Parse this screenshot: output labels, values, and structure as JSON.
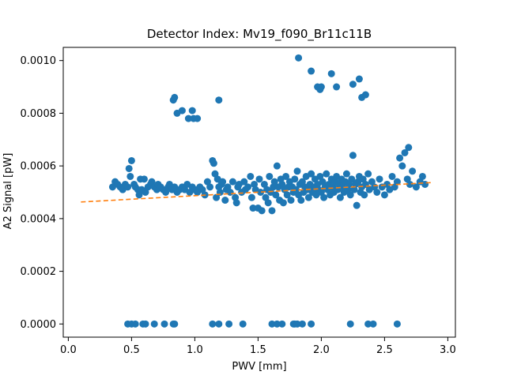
{
  "chart_data": {
    "type": "scatter",
    "title": "Detector Index: Mv19_f090_Br11c11B",
    "xlabel": "PWV [mm]",
    "ylabel": "A2 Signal [pW]",
    "xlim": [
      -0.04,
      3.06
    ],
    "ylim": [
      -5e-05,
      0.00105
    ],
    "x_ticks": [
      0.0,
      0.5,
      1.0,
      1.5,
      2.0,
      2.5,
      3.0
    ],
    "x_tick_labels": [
      "0.0",
      "0.5",
      "1.0",
      "1.5",
      "2.0",
      "2.5",
      "3.0"
    ],
    "y_ticks": [
      0.0,
      0.0002,
      0.0004,
      0.0006,
      0.0008,
      0.001
    ],
    "y_tick_labels": [
      "0.0000",
      "0.0002",
      "0.0004",
      "0.0006",
      "0.0008",
      "0.0010"
    ],
    "grid": false,
    "series": [
      {
        "kind": "points",
        "color": "#1f77b4",
        "points": [
          [
            0.35,
            0.00052
          ],
          [
            0.37,
            0.00054
          ],
          [
            0.39,
            0.00053
          ],
          [
            0.41,
            0.00052
          ],
          [
            0.43,
            0.00051
          ],
          [
            0.45,
            0.00053
          ],
          [
            0.47,
            0.00052
          ],
          [
            0.48,
            0.00059
          ],
          [
            0.49,
            0.00056
          ],
          [
            0.5,
            0.00062
          ],
          [
            0.52,
            0.00053
          ],
          [
            0.53,
            0.00052
          ],
          [
            0.55,
            0.00051
          ],
          [
            0.56,
            0.00049
          ],
          [
            0.57,
            0.00055
          ],
          [
            0.58,
            0.00051
          ],
          [
            0.6,
            0.00055
          ],
          [
            0.61,
            0.0005
          ],
          [
            0.63,
            0.00052
          ],
          [
            0.65,
            0.00053
          ],
          [
            0.66,
            0.00054
          ],
          [
            0.68,
            0.00052
          ],
          [
            0.7,
            0.00051
          ],
          [
            0.71,
            0.00053
          ],
          [
            0.73,
            0.00052
          ],
          [
            0.75,
            0.00051
          ],
          [
            0.77,
            0.0005
          ],
          [
            0.79,
            0.00052
          ],
          [
            0.8,
            0.00053
          ],
          [
            0.82,
            0.00051
          ],
          [
            0.84,
            0.00052
          ],
          [
            0.86,
            0.0005
          ],
          [
            0.88,
            0.00051
          ],
          [
            0.9,
            0.00052
          ],
          [
            0.92,
            0.00051
          ],
          [
            0.94,
            0.00053
          ],
          [
            0.96,
            0.0005
          ],
          [
            0.98,
            0.00052
          ],
          [
            1.0,
            0.00051
          ],
          [
            1.02,
            0.0005
          ],
          [
            1.04,
            0.00052
          ],
          [
            1.06,
            0.00051
          ],
          [
            1.08,
            0.00049
          ],
          [
            1.1,
            0.00054
          ],
          [
            1.12,
            0.00052
          ],
          [
            1.14,
            0.00062
          ],
          [
            1.15,
            0.00061
          ],
          [
            1.16,
            0.00057
          ],
          [
            1.17,
            0.00048
          ],
          [
            1.18,
            0.00055
          ],
          [
            1.19,
            0.00052
          ],
          [
            1.2,
            0.0005
          ],
          [
            1.21,
            0.00053
          ],
          [
            1.22,
            0.00054
          ],
          [
            1.24,
            0.00047
          ],
          [
            1.25,
            0.00051
          ],
          [
            1.26,
            0.00052
          ],
          [
            1.28,
            0.0005
          ],
          [
            1.3,
            0.00054
          ],
          [
            1.32,
            0.00048
          ],
          [
            1.33,
            0.00046
          ],
          [
            1.34,
            0.00052
          ],
          [
            1.35,
            0.00053
          ],
          [
            1.37,
            0.0005
          ],
          [
            1.39,
            0.00054
          ],
          [
            1.4,
            0.00051
          ],
          [
            1.42,
            0.00052
          ],
          [
            1.44,
            0.00056
          ],
          [
            1.45,
            0.00048
          ],
          [
            1.46,
            0.00044
          ],
          [
            1.47,
            0.00053
          ],
          [
            1.48,
            0.00051
          ],
          [
            1.5,
            0.00044
          ],
          [
            1.51,
            0.00055
          ],
          [
            1.52,
            0.0005
          ],
          [
            1.53,
            0.00043
          ],
          [
            1.55,
            0.00053
          ],
          [
            1.56,
            0.00048
          ],
          [
            1.57,
            0.00051
          ],
          [
            1.58,
            0.00046
          ],
          [
            1.59,
            0.00056
          ],
          [
            1.6,
            0.0005
          ],
          [
            1.61,
            0.00043
          ],
          [
            1.62,
            0.00052
          ],
          [
            1.63,
            0.00054
          ],
          [
            1.64,
            0.00049
          ],
          [
            1.65,
            0.0006
          ],
          [
            1.66,
            0.00052
          ],
          [
            1.67,
            0.00047
          ],
          [
            1.68,
            0.00055
          ],
          [
            1.69,
            0.00053
          ],
          [
            1.7,
            0.00046
          ],
          [
            1.71,
            0.00051
          ],
          [
            1.72,
            0.00056
          ],
          [
            1.73,
            0.00049
          ],
          [
            1.74,
            0.00052
          ],
          [
            1.75,
            0.00054
          ],
          [
            1.76,
            0.00047
          ],
          [
            1.77,
            0.00052
          ],
          [
            1.78,
            0.0005
          ],
          [
            1.79,
            0.00055
          ],
          [
            1.8,
            0.00051
          ],
          [
            1.81,
            0.00058
          ],
          [
            1.82,
            0.00049
          ],
          [
            1.83,
            0.00053
          ],
          [
            1.84,
            0.00047
          ],
          [
            1.85,
            0.00054
          ],
          [
            1.86,
            0.0005
          ],
          [
            1.87,
            0.00052
          ],
          [
            1.88,
            0.00056
          ],
          [
            1.89,
            0.00051
          ],
          [
            1.9,
            0.00048
          ],
          [
            1.91,
            0.00053
          ],
          [
            1.92,
            0.00057
          ],
          [
            1.93,
            0.0005
          ],
          [
            1.94,
            0.00052
          ],
          [
            1.95,
            0.00055
          ],
          [
            1.96,
            0.00049
          ],
          [
            1.97,
            0.00053
          ],
          [
            1.98,
            0.00051
          ],
          [
            1.99,
            0.00056
          ],
          [
            2.0,
            0.0005
          ],
          [
            2.01,
            0.00054
          ],
          [
            2.02,
            0.00048
          ],
          [
            2.03,
            0.00052
          ],
          [
            2.04,
            0.00057
          ],
          [
            2.05,
            0.00051
          ],
          [
            2.06,
            0.00053
          ],
          [
            2.07,
            0.00049
          ],
          [
            2.08,
            0.00055
          ],
          [
            2.09,
            0.00052
          ],
          [
            2.1,
            0.0005
          ],
          [
            2.11,
            0.00054
          ],
          [
            2.12,
            0.00056
          ],
          [
            2.13,
            0.00051
          ],
          [
            2.14,
            0.00053
          ],
          [
            2.15,
            0.00048
          ],
          [
            2.16,
            0.00055
          ],
          [
            2.17,
            0.00052
          ],
          [
            2.18,
            0.0005
          ],
          [
            2.19,
            0.00054
          ],
          [
            2.2,
            0.00057
          ],
          [
            2.21,
            0.00051
          ],
          [
            2.22,
            0.00053
          ],
          [
            2.23,
            0.00049
          ],
          [
            2.24,
            0.00055
          ],
          [
            2.25,
            0.00064
          ],
          [
            2.26,
            0.00051
          ],
          [
            2.27,
            0.00053
          ],
          [
            2.28,
            0.00045
          ],
          [
            2.29,
            0.00054
          ],
          [
            2.3,
            0.00056
          ],
          [
            2.31,
            0.0005
          ],
          [
            2.32,
            0.00052
          ],
          [
            2.33,
            0.00055
          ],
          [
            2.34,
            0.00049
          ],
          [
            2.35,
            0.00053
          ],
          [
            2.37,
            0.00057
          ],
          [
            2.38,
            0.00051
          ],
          [
            2.4,
            0.00054
          ],
          [
            2.42,
            0.00052
          ],
          [
            2.44,
            0.0005
          ],
          [
            2.46,
            0.00055
          ],
          [
            2.48,
            0.00052
          ],
          [
            2.5,
            0.00049
          ],
          [
            2.52,
            0.00053
          ],
          [
            2.54,
            0.00051
          ],
          [
            2.56,
            0.00056
          ],
          [
            2.58,
            0.00052
          ],
          [
            2.6,
            0.00054
          ],
          [
            2.62,
            0.00063
          ],
          [
            2.64,
            0.0006
          ],
          [
            2.66,
            0.00065
          ],
          [
            2.68,
            0.00055
          ],
          [
            2.69,
            0.00067
          ],
          [
            2.7,
            0.00053
          ],
          [
            2.72,
            0.00058
          ],
          [
            2.75,
            0.00052
          ],
          [
            2.78,
            0.00054
          ],
          [
            2.8,
            0.00056
          ],
          [
            2.82,
            0.00053
          ],
          [
            0.84,
            0.00086
          ],
          [
            0.83,
            0.00085
          ],
          [
            0.86,
            0.0008
          ],
          [
            0.9,
            0.00081
          ],
          [
            0.95,
            0.00078
          ],
          [
            0.98,
            0.00081
          ],
          [
            0.99,
            0.00078
          ],
          [
            1.02,
            0.00078
          ],
          [
            1.19,
            0.00085
          ],
          [
            1.82,
            0.00101
          ],
          [
            1.92,
            0.00096
          ],
          [
            1.97,
            0.0009
          ],
          [
            1.99,
            0.00089
          ],
          [
            2.0,
            0.0009
          ],
          [
            2.08,
            0.00095
          ],
          [
            2.12,
            0.0009
          ],
          [
            2.25,
            0.00091
          ],
          [
            2.3,
            0.00093
          ],
          [
            2.32,
            0.00086
          ],
          [
            2.35,
            0.00087
          ],
          [
            0.47,
            0.0
          ],
          [
            0.5,
            0.0
          ],
          [
            0.53,
            0.0
          ],
          [
            0.59,
            0.0
          ],
          [
            0.61,
            0.0
          ],
          [
            0.68,
            0.0
          ],
          [
            0.76,
            0.0
          ],
          [
            0.83,
            0.0
          ],
          [
            0.84,
            0.0
          ],
          [
            1.14,
            0.0
          ],
          [
            1.19,
            0.0
          ],
          [
            1.27,
            0.0
          ],
          [
            1.38,
            0.0
          ],
          [
            1.61,
            0.0
          ],
          [
            1.65,
            0.0
          ],
          [
            1.69,
            0.0
          ],
          [
            1.78,
            0.0
          ],
          [
            1.79,
            0.0
          ],
          [
            1.81,
            0.0
          ],
          [
            1.85,
            0.0
          ],
          [
            1.92,
            0.0
          ],
          [
            2.23,
            0.0
          ],
          [
            2.37,
            0.0
          ],
          [
            2.41,
            0.0
          ],
          [
            2.6,
            0.0
          ]
        ]
      },
      {
        "kind": "fit-line",
        "color": "#ff7f0e",
        "dashed": true,
        "points": [
          [
            0.1,
            0.000463
          ],
          [
            2.88,
            0.000537
          ]
        ]
      }
    ]
  }
}
